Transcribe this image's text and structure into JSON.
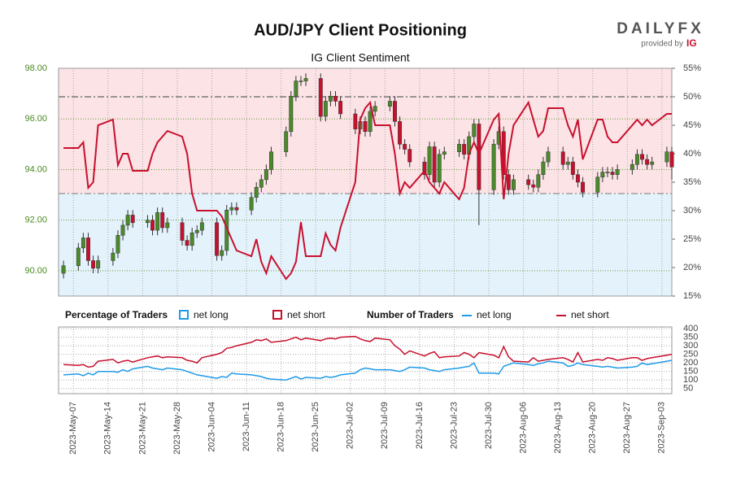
{
  "header": {
    "title": "AUD/JPY Client Positioning",
    "logo": "DAILYFX",
    "logo_sub": "provided by",
    "logo_brand": "IG"
  },
  "chart_data": [
    {
      "type": "candlestick",
      "subtitle": "IG Client Sentiment",
      "legend_title": "Percentage of Traders",
      "legend": [
        {
          "name": "net long",
          "color": "#1e9be9"
        },
        {
          "name": "net short",
          "color": "#c8102e"
        }
      ],
      "up_color": "#4a8a2a",
      "down_color": "#c8102e",
      "grid": true,
      "xlim": [
        "2023-05-04",
        "2023-09-05"
      ],
      "ylim": [
        89,
        98
      ],
      "yticks": [
        {
          "value": 90,
          "label": "90.00"
        },
        {
          "value": 92,
          "label": "92.00"
        },
        {
          "value": 94,
          "label": "94.00"
        },
        {
          "value": 96,
          "label": "96.00"
        },
        {
          "value": 98,
          "label": "98.00"
        }
      ],
      "y2lim": [
        15,
        55
      ],
      "y2ticks": [
        {
          "value": 15,
          "label": "15%"
        },
        {
          "value": 20,
          "label": "20%"
        },
        {
          "value": 25,
          "label": "25%"
        },
        {
          "value": 30,
          "label": "30%"
        },
        {
          "value": 35,
          "label": "35%"
        },
        {
          "value": 40,
          "label": "40%"
        },
        {
          "value": 45,
          "label": "45%"
        },
        {
          "value": 50,
          "label": "50%"
        },
        {
          "value": 55,
          "label": "55%"
        }
      ],
      "y2_reference_lines": [
        50,
        33
      ],
      "x": [
        "2023-05-05",
        "2023-05-08",
        "2023-05-09",
        "2023-05-10",
        "2023-05-11",
        "2023-05-12",
        "2023-05-15",
        "2023-05-16",
        "2023-05-17",
        "2023-05-18",
        "2023-05-19",
        "2023-05-22",
        "2023-05-23",
        "2023-05-24",
        "2023-05-25",
        "2023-05-26",
        "2023-05-29",
        "2023-05-30",
        "2023-05-31",
        "2023-06-01",
        "2023-06-02",
        "2023-06-05",
        "2023-06-06",
        "2023-06-07",
        "2023-06-08",
        "2023-06-09",
        "2023-06-12",
        "2023-06-13",
        "2023-06-14",
        "2023-06-15",
        "2023-06-16",
        "2023-06-19",
        "2023-06-20",
        "2023-06-21",
        "2023-06-22",
        "2023-06-23",
        "2023-06-26",
        "2023-06-27",
        "2023-06-28",
        "2023-06-29",
        "2023-06-30",
        "2023-07-03",
        "2023-07-04",
        "2023-07-05",
        "2023-07-06",
        "2023-07-07",
        "2023-07-10",
        "2023-07-11",
        "2023-07-12",
        "2023-07-13",
        "2023-07-14",
        "2023-07-17",
        "2023-07-18",
        "2023-07-19",
        "2023-07-20",
        "2023-07-21",
        "2023-07-24",
        "2023-07-25",
        "2023-07-26",
        "2023-07-27",
        "2023-07-28",
        "2023-07-31",
        "2023-08-01",
        "2023-08-02",
        "2023-08-03",
        "2023-08-04",
        "2023-08-07",
        "2023-08-08",
        "2023-08-09",
        "2023-08-10",
        "2023-08-11",
        "2023-08-14",
        "2023-08-15",
        "2023-08-16",
        "2023-08-17",
        "2023-08-18",
        "2023-08-21",
        "2023-08-22",
        "2023-08-23",
        "2023-08-24",
        "2023-08-25",
        "2023-08-28",
        "2023-08-29",
        "2023-08-30",
        "2023-08-31",
        "2023-09-01",
        "2023-09-04",
        "2023-09-05"
      ],
      "open": [
        89.9,
        90.2,
        90.9,
        91.3,
        90.4,
        90.1,
        90.4,
        90.7,
        91.4,
        91.8,
        92.2,
        91.9,
        92.0,
        91.6,
        92.3,
        91.7,
        91.9,
        91.2,
        91.0,
        91.5,
        91.6,
        91.9,
        90.6,
        90.8,
        92.4,
        92.5,
        92.4,
        92.9,
        93.3,
        93.6,
        94.0,
        94.7,
        95.5,
        96.9,
        97.5,
        97.5,
        97.6,
        96.1,
        96.7,
        96.9,
        96.7,
        96.2,
        95.6,
        95.9,
        95.5,
        96.3,
        96.5,
        96.7,
        95.9,
        95.0,
        94.8,
        94.3,
        93.8,
        94.9,
        93.5,
        94.6,
        94.7,
        95.0,
        94.6,
        95.3,
        95.8,
        93.2,
        95.0,
        95.5,
        93.8,
        93.2,
        93.6,
        93.4,
        93.3,
        93.8,
        94.3,
        94.7,
        94.2,
        94.3,
        93.8,
        93.5,
        93.1,
        93.7,
        93.9,
        93.9,
        93.8,
        94.0,
        94.2,
        94.6,
        94.4,
        94.2,
        94.3,
        94.7
      ],
      "high": [
        90.4,
        91.1,
        91.5,
        91.5,
        90.6,
        90.6,
        90.9,
        91.6,
        92.0,
        92.4,
        92.4,
        92.2,
        92.2,
        92.5,
        92.5,
        92.1,
        92.1,
        91.4,
        91.7,
        91.8,
        92.1,
        92.1,
        91.0,
        92.6,
        92.7,
        92.7,
        93.1,
        93.5,
        93.8,
        94.2,
        94.9,
        95.7,
        97.1,
        97.7,
        97.7,
        97.8,
        97.8,
        96.9,
        97.1,
        97.1,
        96.9,
        96.4,
        96.1,
        96.1,
        96.5,
        96.7,
        96.9,
        96.9,
        96.1,
        95.2,
        95.0,
        94.5,
        95.1,
        95.1,
        94.8,
        94.9,
        95.2,
        95.2,
        95.5,
        96.0,
        96.0,
        95.2,
        95.7,
        95.7,
        94.0,
        93.8,
        93.8,
        93.6,
        94.0,
        94.5,
        94.9,
        94.9,
        94.5,
        94.5,
        94.0,
        93.7,
        93.9,
        94.1,
        94.1,
        94.1,
        94.2,
        94.4,
        94.8,
        94.8,
        94.6,
        94.5,
        94.9,
        94.9
      ],
      "low": [
        89.7,
        90.0,
        90.7,
        90.2,
        89.9,
        89.9,
        90.2,
        90.5,
        91.2,
        91.6,
        91.7,
        91.7,
        91.4,
        91.4,
        91.5,
        91.5,
        91.0,
        90.8,
        90.8,
        91.3,
        91.4,
        90.4,
        90.4,
        90.6,
        92.2,
        92.2,
        92.2,
        92.7,
        93.1,
        93.4,
        93.8,
        94.5,
        95.3,
        96.7,
        97.3,
        97.3,
        95.9,
        95.9,
        96.5,
        96.5,
        96.0,
        95.4,
        95.4,
        95.3,
        95.3,
        96.1,
        96.3,
        95.7,
        94.8,
        94.6,
        94.1,
        93.6,
        93.6,
        93.3,
        93.3,
        94.4,
        94.5,
        94.4,
        94.4,
        95.1,
        91.8,
        93.0,
        94.8,
        93.6,
        93.0,
        93.0,
        93.2,
        93.1,
        93.1,
        93.6,
        94.1,
        94.0,
        94.0,
        93.6,
        93.3,
        92.9,
        92.9,
        93.5,
        93.7,
        93.6,
        93.6,
        93.8,
        94.0,
        94.2,
        94.0,
        94.0,
        94.1,
        93.6
      ],
      "close": [
        90.2,
        90.9,
        91.3,
        90.4,
        90.1,
        90.4,
        90.7,
        91.4,
        91.8,
        92.2,
        91.9,
        92.0,
        91.6,
        92.3,
        91.7,
        91.9,
        91.2,
        91.0,
        91.5,
        91.6,
        91.9,
        90.6,
        90.8,
        92.4,
        92.5,
        92.4,
        92.9,
        93.3,
        93.6,
        94.0,
        94.7,
        95.5,
        96.9,
        97.5,
        97.5,
        97.6,
        96.1,
        96.7,
        96.9,
        96.7,
        96.2,
        95.6,
        95.9,
        95.5,
        96.3,
        96.5,
        96.7,
        95.9,
        95.0,
        94.8,
        94.3,
        93.8,
        94.9,
        93.5,
        94.6,
        94.7,
        95.0,
        94.6,
        95.3,
        95.8,
        93.2,
        95.0,
        95.5,
        93.8,
        93.2,
        93.6,
        93.4,
        93.3,
        93.8,
        94.3,
        94.7,
        94.2,
        94.3,
        93.8,
        93.5,
        93.1,
        93.7,
        93.9,
        93.9,
        93.8,
        94.0,
        94.2,
        94.6,
        94.4,
        94.2,
        94.3,
        94.7,
        94.1
      ],
      "series": [
        {
          "name": "net short",
          "color": "#c8102e",
          "axis": "y2",
          "values": [
            41,
            41,
            42,
            34,
            35,
            45,
            46,
            38,
            40,
            40,
            37,
            37,
            40,
            42,
            43,
            44,
            43,
            40,
            33,
            30,
            30,
            30,
            29,
            27,
            25,
            23,
            22,
            25,
            21,
            19,
            22,
            18,
            19,
            21,
            28,
            22,
            22,
            26,
            24,
            23,
            27,
            35,
            46,
            48,
            49,
            45,
            45,
            40,
            33,
            35,
            34,
            37,
            35,
            34,
            33,
            35,
            32,
            34,
            40,
            42,
            40,
            46,
            47,
            32,
            40,
            45,
            49,
            46,
            43,
            44,
            48,
            48,
            45,
            43,
            46,
            39,
            46,
            46,
            43,
            42,
            42,
            45,
            46,
            45,
            46,
            45,
            47,
            47
          ]
        }
      ]
    },
    {
      "type": "line",
      "legend_title": "Number of Traders",
      "grid": true,
      "xlim": [
        "2023-05-04",
        "2023-09-05"
      ],
      "xticks": [
        {
          "value": "2023-05-07",
          "label": "2023-May-07"
        },
        {
          "value": "2023-05-14",
          "label": "2023-May-14"
        },
        {
          "value": "2023-05-21",
          "label": "2023-May-21"
        },
        {
          "value": "2023-05-28",
          "label": "2023-May-28"
        },
        {
          "value": "2023-06-04",
          "label": "2023-Jun-04"
        },
        {
          "value": "2023-06-11",
          "label": "2023-Jun-11"
        },
        {
          "value": "2023-06-18",
          "label": "2023-Jun-18"
        },
        {
          "value": "2023-06-25",
          "label": "2023-Jun-25"
        },
        {
          "value": "2023-07-02",
          "label": "2023-Jul-02"
        },
        {
          "value": "2023-07-09",
          "label": "2023-Jul-09"
        },
        {
          "value": "2023-07-16",
          "label": "2023-Jul-16"
        },
        {
          "value": "2023-07-23",
          "label": "2023-Jul-23"
        },
        {
          "value": "2023-07-30",
          "label": "2023-Jul-30"
        },
        {
          "value": "2023-08-06",
          "label": "2023-Aug-06"
        },
        {
          "value": "2023-08-13",
          "label": "2023-Aug-13"
        },
        {
          "value": "2023-08-20",
          "label": "2023-Aug-20"
        },
        {
          "value": "2023-08-27",
          "label": "2023-Aug-27"
        },
        {
          "value": "2023-09-03",
          "label": "2023-Sep-03"
        }
      ],
      "ylim": [
        20,
        410
      ],
      "yticks": [
        50,
        100,
        150,
        200,
        250,
        300,
        350,
        400
      ],
      "x": [
        "2023-05-05",
        "2023-05-08",
        "2023-05-09",
        "2023-05-10",
        "2023-05-11",
        "2023-05-12",
        "2023-05-15",
        "2023-05-16",
        "2023-05-17",
        "2023-05-18",
        "2023-05-19",
        "2023-05-22",
        "2023-05-23",
        "2023-05-24",
        "2023-05-25",
        "2023-05-26",
        "2023-05-29",
        "2023-05-30",
        "2023-05-31",
        "2023-06-01",
        "2023-06-02",
        "2023-06-05",
        "2023-06-06",
        "2023-06-07",
        "2023-06-08",
        "2023-06-09",
        "2023-06-12",
        "2023-06-13",
        "2023-06-14",
        "2023-06-15",
        "2023-06-16",
        "2023-06-19",
        "2023-06-20",
        "2023-06-21",
        "2023-06-22",
        "2023-06-23",
        "2023-06-26",
        "2023-06-27",
        "2023-06-28",
        "2023-06-29",
        "2023-06-30",
        "2023-07-03",
        "2023-07-04",
        "2023-07-05",
        "2023-07-06",
        "2023-07-07",
        "2023-07-10",
        "2023-07-11",
        "2023-07-12",
        "2023-07-13",
        "2023-07-14",
        "2023-07-17",
        "2023-07-18",
        "2023-07-19",
        "2023-07-20",
        "2023-07-21",
        "2023-07-24",
        "2023-07-25",
        "2023-07-26",
        "2023-07-27",
        "2023-07-28",
        "2023-07-31",
        "2023-08-01",
        "2023-08-02",
        "2023-08-03",
        "2023-08-04",
        "2023-08-07",
        "2023-08-08",
        "2023-08-09",
        "2023-08-10",
        "2023-08-11",
        "2023-08-14",
        "2023-08-15",
        "2023-08-16",
        "2023-08-17",
        "2023-08-18",
        "2023-08-21",
        "2023-08-22",
        "2023-08-23",
        "2023-08-24",
        "2023-08-25",
        "2023-08-28",
        "2023-08-29",
        "2023-08-30",
        "2023-08-31",
        "2023-09-01",
        "2023-09-04",
        "2023-09-05"
      ],
      "series": [
        {
          "name": "net long",
          "color": "#1e9be9",
          "values": [
            130,
            135,
            125,
            140,
            130,
            150,
            150,
            145,
            160,
            150,
            165,
            180,
            170,
            165,
            160,
            170,
            160,
            150,
            140,
            130,
            125,
            110,
            120,
            115,
            140,
            135,
            130,
            125,
            120,
            110,
            105,
            100,
            110,
            120,
            105,
            115,
            110,
            120,
            115,
            120,
            130,
            140,
            160,
            170,
            165,
            160,
            160,
            155,
            150,
            160,
            175,
            170,
            160,
            155,
            150,
            160,
            170,
            175,
            180,
            200,
            140,
            140,
            135,
            180,
            190,
            200,
            190,
            185,
            195,
            200,
            210,
            200,
            180,
            185,
            200,
            190,
            180,
            175,
            180,
            175,
            170,
            175,
            180,
            200,
            190,
            195,
            210,
            215
          ]
        },
        {
          "name": "net short",
          "color": "#c8102e",
          "values": [
            190,
            185,
            190,
            175,
            180,
            210,
            220,
            200,
            210,
            215,
            205,
            230,
            235,
            240,
            230,
            235,
            230,
            215,
            210,
            200,
            230,
            250,
            260,
            285,
            290,
            300,
            320,
            335,
            330,
            340,
            320,
            330,
            340,
            350,
            335,
            345,
            330,
            340,
            345,
            340,
            350,
            355,
            340,
            330,
            325,
            345,
            335,
            300,
            280,
            250,
            270,
            240,
            255,
            265,
            230,
            235,
            240,
            260,
            250,
            230,
            260,
            245,
            230,
            295,
            235,
            210,
            205,
            230,
            210,
            215,
            220,
            230,
            220,
            205,
            260,
            205,
            220,
            215,
            230,
            225,
            215,
            230,
            230,
            215,
            225,
            230,
            245,
            250
          ]
        }
      ]
    }
  ]
}
